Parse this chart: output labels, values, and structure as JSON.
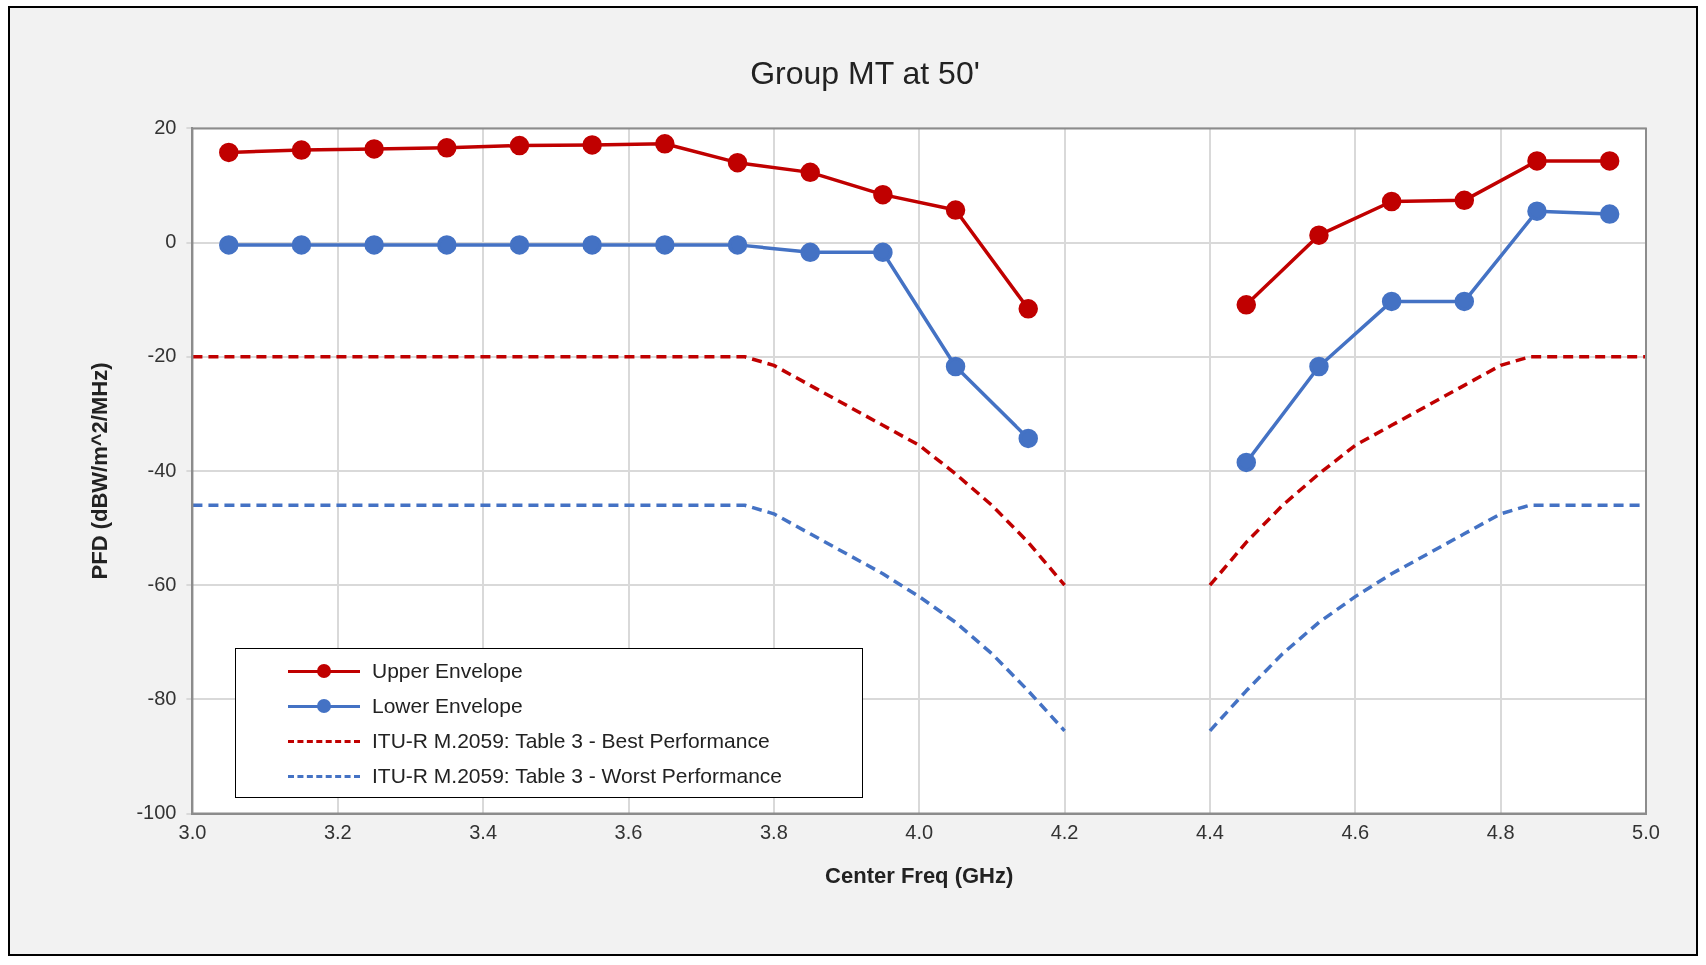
{
  "chart_data": {
    "type": "line",
    "title": "Group MT at 50'",
    "xlabel": "Center Freq (GHz)",
    "ylabel": "PFD (dBW/m^2/MHz)",
    "xlim": [
      3.0,
      5.0
    ],
    "ylim": [
      -100,
      20
    ],
    "xticks": [
      {
        "value": 3.0,
        "label": "3.0"
      },
      {
        "value": 3.2,
        "label": "3.2"
      },
      {
        "value": 3.4,
        "label": "3.4"
      },
      {
        "value": 3.6,
        "label": "3.6"
      },
      {
        "value": 3.8,
        "label": "3.8"
      },
      {
        "value": 4.0,
        "label": "4.0"
      },
      {
        "value": 4.2,
        "label": "4.2"
      },
      {
        "value": 4.4,
        "label": "4.4"
      },
      {
        "value": 4.6,
        "label": "4.6"
      },
      {
        "value": 4.8,
        "label": "4.8"
      },
      {
        "value": 5.0,
        "label": "5.0"
      }
    ],
    "yticks": [
      20,
      0,
      -20,
      -40,
      -60,
      -80,
      -100
    ],
    "grid": true,
    "legend": "bottom left",
    "series": [
      {
        "name": "Upper Envelope",
        "color": "#c00000",
        "marker": "circle",
        "line_style": "solid",
        "x": [
          3.05,
          3.15,
          3.25,
          3.35,
          3.45,
          3.55,
          3.65,
          3.75,
          3.85,
          3.95,
          4.05,
          4.15,
          4.3,
          4.45,
          4.55,
          4.65,
          4.75,
          4.85,
          4.95
        ],
        "values": [
          15.8,
          16.2,
          16.4,
          16.6,
          17.0,
          17.1,
          17.3,
          14.0,
          12.3,
          8.4,
          5.7,
          -11.6,
          null,
          -10.9,
          1.3,
          7.2,
          7.4,
          14.3,
          14.3
        ]
      },
      {
        "name": "Lower Envelope",
        "color": "#4472c4",
        "marker": "circle",
        "line_style": "solid",
        "x": [
          3.05,
          3.15,
          3.25,
          3.35,
          3.45,
          3.55,
          3.65,
          3.75,
          3.85,
          3.95,
          4.05,
          4.15,
          4.3,
          4.45,
          4.55,
          4.65,
          4.75,
          4.85,
          4.95
        ],
        "values": [
          -0.4,
          -0.4,
          -0.4,
          -0.4,
          -0.4,
          -0.4,
          -0.4,
          -0.4,
          -1.7,
          -1.7,
          -21.7,
          -34.3,
          null,
          -38.5,
          -21.7,
          -10.3,
          -10.3,
          5.5,
          5.0
        ]
      },
      {
        "name": "ITU-R M.2059: Table 3 - Best Performance",
        "color": "#c00000",
        "marker": "none",
        "line_style": "dashed",
        "x": [
          3.0,
          3.76,
          3.8,
          3.85,
          3.9,
          3.95,
          4.0,
          4.05,
          4.1,
          4.15,
          4.2,
          4.3,
          4.4,
          4.45,
          4.5,
          4.55,
          4.6,
          4.65,
          4.7,
          4.75,
          4.8,
          4.84,
          5.0
        ],
        "values": [
          -20,
          -20,
          -21.5,
          -25,
          -28.5,
          -32,
          -35.5,
          -40.5,
          -46,
          -52.5,
          -60,
          null,
          -60,
          -52.5,
          -46,
          -40.5,
          -35.5,
          -32,
          -28.5,
          -25,
          -21.5,
          -20,
          -20
        ]
      },
      {
        "name": "ITU-R M.2059: Table 3 - Worst Performance",
        "color": "#4472c4",
        "marker": "none",
        "line_style": "dashed",
        "x": [
          3.0,
          3.76,
          3.8,
          3.85,
          3.9,
          3.95,
          4.0,
          4.05,
          4.1,
          4.15,
          4.2,
          4.3,
          4.4,
          4.45,
          4.5,
          4.55,
          4.6,
          4.65,
          4.7,
          4.75,
          4.8,
          4.84,
          5.0
        ],
        "values": [
          -46,
          -46,
          -47.5,
          -51,
          -54.5,
          -58,
          -62,
          -66.5,
          -72,
          -78.5,
          -85.5,
          null,
          -85.5,
          -78.5,
          -72,
          -66.5,
          -62,
          -58,
          -54.5,
          -51,
          -47.5,
          -46,
          -46
        ]
      }
    ]
  }
}
